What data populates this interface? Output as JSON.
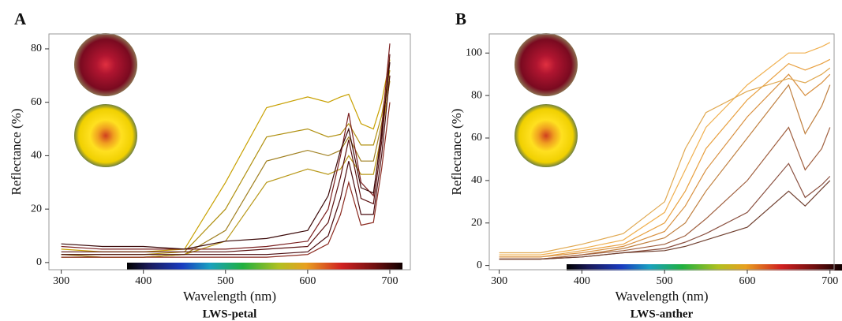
{
  "chart_data": [
    {
      "type": "line",
      "panel": "A",
      "title": "LWS-petal",
      "x_label": "Wavelength (nm)",
      "y_label": "Reflectance (%)",
      "x": [
        300,
        350,
        400,
        450,
        500,
        550,
        600,
        625,
        640,
        650,
        665,
        680,
        690,
        700
      ],
      "series": [
        {
          "color": "#c8a000",
          "values": [
            5,
            4,
            4,
            5,
            30,
            58,
            62,
            60,
            62,
            63,
            52,
            50,
            60,
            76
          ]
        },
        {
          "color": "#b09010",
          "values": [
            3,
            3,
            3,
            4,
            20,
            47,
            50,
            47,
            48,
            52,
            44,
            44,
            55,
            72
          ]
        },
        {
          "color": "#a08020",
          "values": [
            3,
            2,
            2,
            3,
            12,
            38,
            42,
            40,
            42,
            47,
            38,
            38,
            52,
            70
          ]
        },
        {
          "color": "#b89818",
          "values": [
            2,
            2,
            2,
            3,
            8,
            30,
            35,
            33,
            35,
            40,
            33,
            33,
            48,
            68
          ]
        },
        {
          "color": "#7a1f1f",
          "values": [
            6,
            5,
            5,
            5,
            5,
            6,
            8,
            20,
            40,
            56,
            30,
            25,
            50,
            82
          ]
        },
        {
          "color": "#5a1010",
          "values": [
            4,
            4,
            4,
            4,
            4,
            5,
            6,
            15,
            32,
            46,
            24,
            22,
            45,
            78
          ]
        },
        {
          "color": "#4a0c10",
          "values": [
            3,
            3,
            3,
            3,
            3,
            3,
            4,
            10,
            24,
            38,
            18,
            18,
            40,
            70
          ]
        },
        {
          "color": "#8b2a20",
          "values": [
            2,
            2,
            2,
            2,
            2,
            2,
            3,
            7,
            18,
            30,
            14,
            15,
            35,
            60
          ]
        },
        {
          "color": "#3a0808",
          "values": [
            7,
            6,
            6,
            5,
            8,
            9,
            12,
            25,
            42,
            50,
            28,
            26,
            48,
            75
          ]
        }
      ],
      "xlim": [
        285,
        725
      ],
      "ylim": [
        -2.7,
        85.6
      ],
      "xticks": [
        300,
        400,
        500,
        600,
        700
      ],
      "yticks": [
        0,
        20,
        40,
        60,
        80
      ]
    },
    {
      "type": "line",
      "panel": "B",
      "title": "LWS-anther",
      "x_label": "Wavelength (nm)",
      "y_label": "Reflectance (%)",
      "x": [
        300,
        350,
        400,
        450,
        500,
        525,
        550,
        600,
        650,
        670,
        690,
        700
      ],
      "series": [
        {
          "color": "#f0b050",
          "values": [
            5,
            5,
            8,
            12,
            25,
            45,
            65,
            85,
            100,
            100,
            103,
            105
          ]
        },
        {
          "color": "#e8a040",
          "values": [
            4,
            4,
            7,
            10,
            20,
            35,
            55,
            78,
            95,
            92,
            95,
            97
          ]
        },
        {
          "color": "#d89040",
          "values": [
            4,
            4,
            6,
            9,
            16,
            28,
            45,
            70,
            90,
            80,
            86,
            90
          ]
        },
        {
          "color": "#c08040",
          "values": [
            3,
            3,
            5,
            8,
            13,
            20,
            35,
            60,
            85,
            62,
            75,
            85
          ]
        },
        {
          "color": "#a06040",
          "values": [
            3,
            3,
            5,
            7,
            10,
            14,
            22,
            40,
            65,
            45,
            55,
            65
          ]
        },
        {
          "color": "#8a5040",
          "values": [
            3,
            3,
            4,
            6,
            8,
            11,
            15,
            25,
            48,
            32,
            38,
            42
          ]
        },
        {
          "color": "#704030",
          "values": [
            3,
            3,
            4,
            6,
            7,
            9,
            12,
            18,
            35,
            28,
            36,
            40
          ]
        },
        {
          "color": "#e0a850",
          "values": [
            6,
            6,
            10,
            15,
            30,
            55,
            72,
            82,
            88,
            86,
            90,
            93
          ]
        }
      ],
      "xlim": [
        288,
        705
      ],
      "ylim": [
        -2,
        109
      ],
      "xticks": [
        300,
        400,
        500,
        600,
        700
      ],
      "yticks": [
        0,
        20,
        40,
        60,
        80,
        100
      ]
    }
  ]
}
